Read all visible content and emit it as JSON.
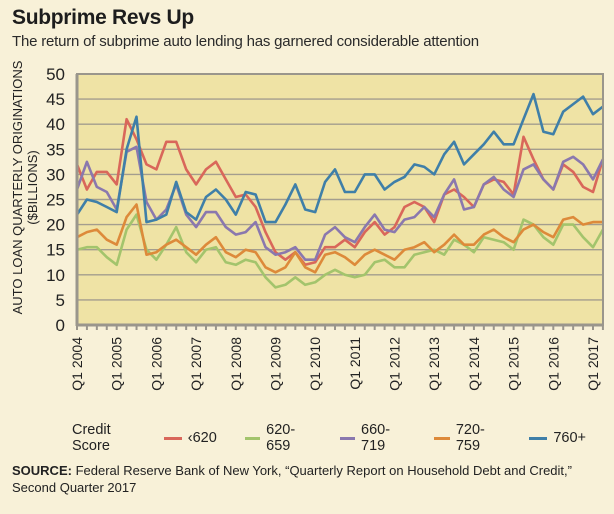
{
  "header": {
    "title": "Subprime Revs Up",
    "subtitle": "The return of subprime auto lending has garnered considerable attention"
  },
  "chart_data": {
    "type": "line",
    "title": "Subprime Revs Up",
    "subtitle": "The return of subprime auto lending has garnered considerable attention",
    "xlabel": "",
    "ylabel": "AUTO LOAN QUARTERLY ORIGINATIONS ($BILLIONS)",
    "ylabel_lines": [
      "AUTO LOAN QUARTERLY ORIGINATIONS",
      "($BILLIONS)"
    ],
    "ylim": [
      0,
      50
    ],
    "yticks": [
      0,
      5,
      10,
      15,
      20,
      25,
      30,
      35,
      40,
      45,
      50
    ],
    "grid": true,
    "x_start": "Q1 2004",
    "x_end": "Q2 2017",
    "x_count": 54,
    "xtick_labels": [
      "Q1 2004",
      "Q1 2005",
      "Q1 2006",
      "Q1 2007",
      "Q1 2008",
      "Q1 2009",
      "Q1 2010",
      "Q1 2011",
      "Q1 2012",
      "Q1 2013",
      "Q1 2014",
      "Q1 2015",
      "Q1 2016",
      "Q1 2017"
    ],
    "xtick_every": 4,
    "legend_title": "Credit Score",
    "legend_position": "bottom",
    "series": [
      {
        "name": "‹620",
        "color": "#d9675a",
        "values": [
          32,
          27,
          30.5,
          30.5,
          28,
          41,
          37,
          32,
          31,
          36.5,
          36.5,
          31,
          28,
          31,
          32.5,
          29,
          25.5,
          26,
          23.5,
          18.5,
          14.5,
          13,
          14.5,
          12,
          12.5,
          15.5,
          15.5,
          17,
          15.5,
          18.5,
          20.5,
          18,
          19.5,
          23.5,
          24.5,
          23.5,
          20.5,
          26,
          27,
          25.5,
          23.5,
          28,
          29,
          28.5,
          26,
          37.5,
          33,
          29,
          27,
          32,
          30.5,
          27.5,
          26.5,
          33
        ]
      },
      {
        "name": "620-659",
        "color": "#a3c46c",
        "values": [
          15,
          15.5,
          15.5,
          13.5,
          12,
          19,
          22,
          15,
          13,
          16,
          19.5,
          14.5,
          12.5,
          15,
          15.5,
          12.5,
          12,
          13,
          12.5,
          9.5,
          7.5,
          8,
          9.5,
          8,
          8.5,
          10,
          11,
          10,
          9.5,
          10,
          12.5,
          13,
          11.5,
          11.5,
          14,
          14.5,
          15,
          14,
          17,
          16,
          14.5,
          17.5,
          17,
          16.5,
          15,
          21,
          20,
          17.5,
          16,
          20,
          20,
          17.5,
          15.5,
          19
        ]
      },
      {
        "name": "660-719",
        "color": "#8a78ae",
        "values": [
          27,
          32.5,
          27.5,
          26.5,
          23,
          34.5,
          35.5,
          24.5,
          21,
          23,
          28,
          22,
          19.5,
          22.5,
          22.5,
          19.5,
          18,
          18.5,
          20.5,
          15.5,
          14,
          14.5,
          15.5,
          13,
          13,
          18,
          19.5,
          17.5,
          16.5,
          19.5,
          22,
          19,
          18.5,
          21,
          21.5,
          23.5,
          21.5,
          26,
          29,
          23,
          23.5,
          28,
          29.5,
          27,
          25.5,
          31,
          32,
          29,
          27,
          32.5,
          33.5,
          32,
          29,
          33
        ]
      },
      {
        "name": "720-759",
        "color": "#dd8a3a",
        "values": [
          17.5,
          18.5,
          19,
          17,
          16,
          21.5,
          24,
          14,
          14.5,
          16,
          17,
          15.5,
          14,
          16,
          17.5,
          14.5,
          13.5,
          15,
          14.5,
          11.5,
          10.5,
          11.5,
          14.5,
          11.5,
          10.5,
          14,
          14.5,
          13.5,
          12,
          14,
          15,
          14,
          13,
          15,
          15.5,
          16.5,
          14.5,
          16,
          18,
          16,
          16,
          18,
          19,
          17.5,
          16.5,
          19,
          20,
          18.5,
          17.5,
          21,
          21.5,
          20,
          20.5,
          20.5
        ]
      },
      {
        "name": "760+",
        "color": "#3f7fa8",
        "values": [
          22,
          25,
          24.5,
          23.5,
          22.5,
          35,
          41.5,
          20.5,
          21,
          22,
          28.5,
          22.5,
          21,
          25.5,
          27,
          25,
          22,
          26.5,
          26,
          20.5,
          20.5,
          24,
          28,
          23,
          22.5,
          28.5,
          31,
          26.5,
          26.5,
          30,
          30,
          27,
          28.5,
          29.5,
          32,
          31.5,
          30,
          34,
          36.5,
          32,
          34,
          36,
          38.5,
          36,
          36,
          41,
          46,
          38.5,
          38,
          42.5,
          44,
          45.5,
          42,
          43.5
        ]
      }
    ]
  },
  "legend": {
    "title": "Credit Score",
    "items": [
      "‹620",
      "620-659",
      "660-719",
      "720-759",
      "760+"
    ]
  },
  "source": {
    "label": "SOURCE:",
    "text": " Federal Reserve Bank of New York, “Quarterly Report on Household Debt and Credit,” Second Quarter 2017"
  },
  "colors": {
    "page_background": "#f8f1d8",
    "plot_background": "#efe3a5",
    "gridline": "#a39d8e",
    "frame": "#9a968c"
  }
}
